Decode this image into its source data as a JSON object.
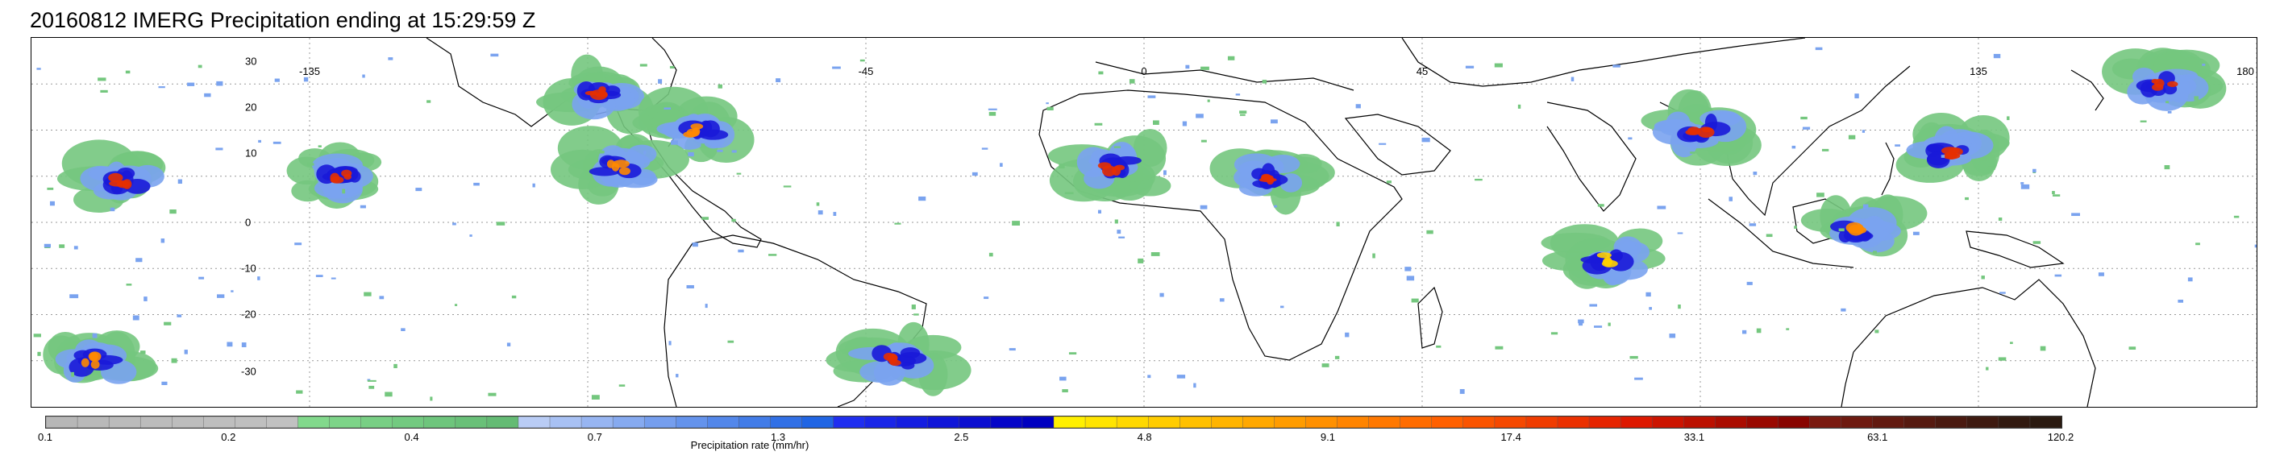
{
  "title": "20160812 IMERG Precipitation ending at 15:29:59 Z",
  "map": {
    "projection": "equirectangular",
    "extent": {
      "lon": [
        -180,
        180
      ],
      "lat": [
        -40,
        40
      ]
    },
    "longitude_labels": [
      "-135",
      "-45",
      "0",
      "45",
      "135",
      "180"
    ],
    "latitude_labels": [
      "30",
      "20",
      "10",
      "0",
      "-10",
      "-20",
      "-30"
    ],
    "gridlines": "dotted",
    "precipitation_clusters": [
      {
        "region": "ITCZ east Pacific",
        "lon": -165,
        "lat": 9,
        "max_rate": 17.4
      },
      {
        "region": "ITCZ east Pacific",
        "lon": -130,
        "lat": 10,
        "max_rate": 17.4
      },
      {
        "region": "Gulf of Mexico",
        "lon": -88,
        "lat": 28,
        "max_rate": 17.4
      },
      {
        "region": "Caribbean",
        "lon": -72,
        "lat": 20,
        "max_rate": 9.1
      },
      {
        "region": "Central America",
        "lon": -85,
        "lat": 12,
        "max_rate": 9.1
      },
      {
        "region": "West Africa",
        "lon": -5,
        "lat": 12,
        "max_rate": 17.4
      },
      {
        "region": "Central Africa",
        "lon": 20,
        "lat": 10,
        "max_rate": 17.4
      },
      {
        "region": "Bay of Bengal",
        "lon": 90,
        "lat": 20,
        "max_rate": 17.4
      },
      {
        "region": "West Pacific",
        "lon": 130,
        "lat": 15,
        "max_rate": 33.1
      },
      {
        "region": "Typhoon NW Pacific",
        "lon": 165,
        "lat": 30,
        "max_rate": 33.1
      },
      {
        "region": "South Atlantic",
        "lon": -40,
        "lat": -30,
        "max_rate": 17.4
      },
      {
        "region": "South Pacific",
        "lon": -170,
        "lat": -30,
        "max_rate": 9.1
      },
      {
        "region": "Maritime Continent",
        "lon": 115,
        "lat": -2,
        "max_rate": 9.1
      },
      {
        "region": "Indian Ocean",
        "lon": 75,
        "lat": -8,
        "max_rate": 4.8
      }
    ]
  },
  "colorbar": {
    "title": "Precipitation rate (mm/hr)",
    "tick_labels": [
      "0.1",
      "0.2",
      "0.4",
      "0.7",
      "1.3",
      "2.5",
      "4.8",
      "9.1",
      "17.4",
      "33.1",
      "63.1",
      "120.2"
    ],
    "colors": [
      "#b7b7b7",
      "#b9b9b9",
      "#bbbbbb",
      "#bcbcbc",
      "#bdbdbd",
      "#bebebe",
      "#bfbfbf",
      "#c1c1c1",
      "#82d98c",
      "#7dd488",
      "#78cf84",
      "#73ca80",
      "#6ec57c",
      "#69c078",
      "#64bb74",
      "#b9ccf5",
      "#a8c1f4",
      "#97b5f2",
      "#86aaf0",
      "#759eee",
      "#6493ec",
      "#5387ea",
      "#427ce8",
      "#3170e6",
      "#2065e4",
      "#1f2ef0",
      "#1a26e8",
      "#151ee0",
      "#1016d8",
      "#0b0ed0",
      "#0606c8",
      "#0000c0",
      "#fff000",
      "#ffe400",
      "#ffd800",
      "#ffcc00",
      "#ffc000",
      "#ffb400",
      "#ffa800",
      "#ff9c00",
      "#ff9000",
      "#ff8400",
      "#ff7800",
      "#ff6c00",
      "#ff6000",
      "#fa5400",
      "#f54800",
      "#f03c00",
      "#eb3000",
      "#e62400",
      "#dd1800",
      "#cc1400",
      "#bb1000",
      "#aa0c00",
      "#990800",
      "#880400",
      "#7a1a10",
      "#6e1a10",
      "#621a10",
      "#561a10",
      "#4a1a10",
      "#3e1a10",
      "#321a10",
      "#2a1a10"
    ]
  }
}
